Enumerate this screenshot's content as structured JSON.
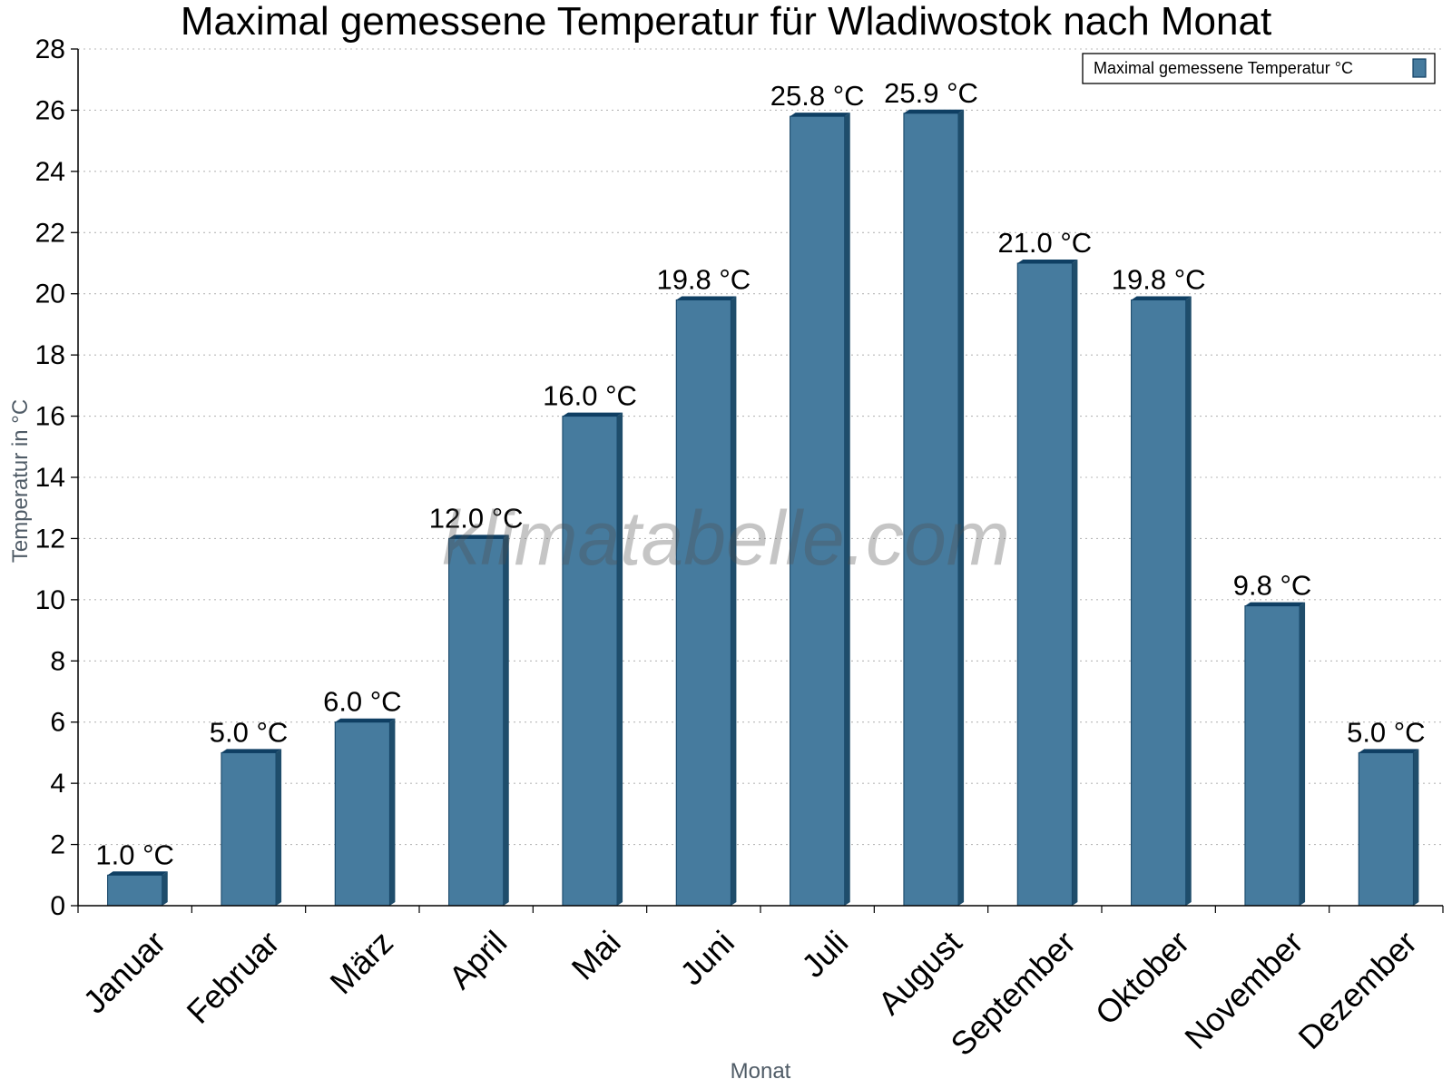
{
  "chart_data": {
    "type": "bar",
    "title": "Maximal gemessene Temperatur für Wladiwostok nach Monat",
    "xlabel": "Monat",
    "ylabel": "Temperatur in °C",
    "categories": [
      "Januar",
      "Februar",
      "März",
      "April",
      "Mai",
      "Juni",
      "Juli",
      "August",
      "September",
      "Oktober",
      "November",
      "Dezember"
    ],
    "series": [
      {
        "name": "Maximal gemessene Temperatur °C",
        "values": [
          1.0,
          5.0,
          6.0,
          12.0,
          16.0,
          19.8,
          25.8,
          25.9,
          21.0,
          19.8,
          9.8,
          5.0
        ],
        "labels": [
          "1.0 °C",
          "5.0 °C",
          "6.0 °C",
          "12.0 °C",
          "16.0 °C",
          "19.8 °C",
          "25.8 °C",
          "25.9 °C",
          "21.0 °C",
          "19.8 °C",
          "9.8 °C",
          "5.0 °C"
        ]
      }
    ],
    "ylim": [
      0,
      28
    ],
    "yticks": [
      0,
      2,
      4,
      6,
      8,
      10,
      12,
      14,
      16,
      18,
      20,
      22,
      24,
      26,
      28
    ],
    "grid": true,
    "legend_position": "top-right",
    "watermark": "klimatabelle.com",
    "colors": {
      "bar": "#467b9e",
      "bar_side": "#1f4d6b",
      "bar_top": "#0f3f63",
      "grid": "#b8b8b8",
      "axis": "#000000"
    }
  }
}
